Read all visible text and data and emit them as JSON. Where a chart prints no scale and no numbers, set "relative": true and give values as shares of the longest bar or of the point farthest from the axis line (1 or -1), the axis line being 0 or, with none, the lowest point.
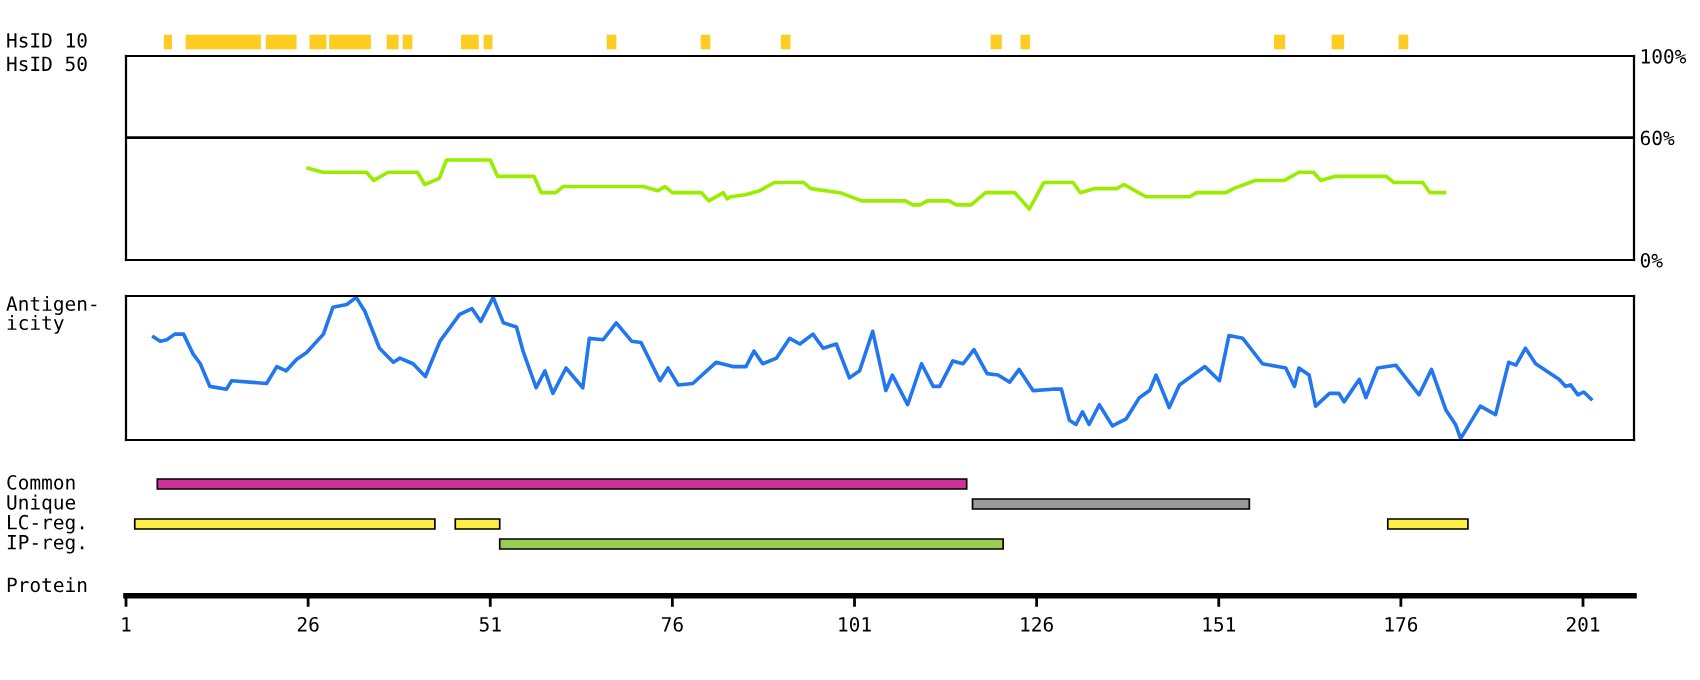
{
  "chart_data": [
    {
      "type": "bar",
      "orientation": "horizontal",
      "categories": [
        "HsID 10"
      ],
      "xlim": [
        1,
        208
      ],
      "tick_labels": "y",
      "series": [
        {
          "color": "#ffcc22",
          "base": [
            6.3
          ],
          "values": [
            0.9
          ]
        },
        {
          "color": "#ffcc22",
          "base": [
            9.3
          ],
          "values": [
            10.1
          ]
        },
        {
          "color": "#ffcc22",
          "base": [
            20.3
          ],
          "values": [
            4.0
          ]
        },
        {
          "color": "#ffcc22",
          "base": [
            26.3
          ],
          "values": [
            2.1
          ]
        },
        {
          "color": "#ffcc22",
          "base": [
            29.0
          ],
          "values": [
            5.5
          ]
        },
        {
          "color": "#ffcc22",
          "base": [
            36.9
          ],
          "values": [
            1.4
          ]
        },
        {
          "color": "#ffcc22",
          "base": [
            39.1
          ],
          "values": [
            1.1
          ]
        },
        {
          "color": "#ffcc22",
          "base": [
            47.1
          ],
          "values": [
            2.2
          ]
        },
        {
          "color": "#ffcc22",
          "base": [
            50.2
          ],
          "values": [
            1.0
          ]
        },
        {
          "color": "#ffcc22",
          "base": [
            67.1
          ],
          "values": [
            1.1
          ]
        },
        {
          "color": "#ffcc22",
          "base": [
            80.0
          ],
          "values": [
            1.1
          ]
        },
        {
          "color": "#ffcc22",
          "base": [
            91.0
          ],
          "values": [
            1.1
          ]
        },
        {
          "color": "#ffcc22",
          "base": [
            119.8
          ],
          "values": [
            1.3
          ]
        },
        {
          "color": "#ffcc22",
          "base": [
            123.9
          ],
          "values": [
            1.1
          ]
        },
        {
          "color": "#ffcc22",
          "base": [
            158.7
          ],
          "values": [
            1.3
          ]
        },
        {
          "color": "#ffcc22",
          "base": [
            166.6
          ],
          "values": [
            1.5
          ]
        },
        {
          "color": "#ffcc22",
          "base": [
            175.8
          ],
          "values": [
            1.1
          ]
        }
      ]
    },
    {
      "type": "line",
      "ylabel": "HsID 50",
      "xlim": [
        1,
        208
      ],
      "ylim": [
        0,
        100
      ],
      "tick_labels": "y",
      "yticks": [
        {
          "value": 0,
          "label": "0%"
        },
        {
          "value": 60,
          "label": "60%"
        },
        {
          "value": 100,
          "label": "100%"
        }
      ],
      "ref_lines": [
        {
          "axis": "y",
          "value": 60,
          "label": null,
          "color": "#000000"
        }
      ],
      "series": [
        {
          "color": "#99ee00",
          "x": [
            26,
            28,
            34,
            35,
            37,
            41,
            42,
            44,
            45,
            51,
            52,
            57,
            58,
            60,
            61,
            72,
            74,
            75,
            76,
            80,
            81,
            83,
            83.5,
            84,
            86,
            88,
            90,
            94,
            95,
            99,
            102,
            108,
            109,
            110,
            111,
            114,
            115,
            117,
            119,
            123,
            125,
            127,
            131,
            132,
            134,
            137,
            138,
            139,
            141,
            147,
            148,
            152,
            153,
            156,
            160,
            162,
            164,
            165,
            167,
            174,
            175,
            179,
            180,
            182
          ],
          "values": [
            45,
            43,
            43,
            39,
            43,
            43,
            37,
            40,
            49,
            49,
            41,
            41,
            33,
            33,
            36,
            36,
            34,
            36,
            33,
            33,
            29,
            33,
            30,
            31,
            32,
            34,
            38,
            38,
            35,
            33,
            29,
            29,
            27,
            27,
            29,
            29,
            27,
            27,
            33,
            33,
            25,
            38,
            38,
            33,
            35,
            35,
            37,
            35,
            31,
            31,
            33,
            33,
            35,
            39,
            39,
            43,
            43,
            39,
            41,
            41,
            38,
            38,
            33,
            33
          ]
        }
      ]
    },
    {
      "type": "line",
      "ylabel": "Antigen-\nicity",
      "relative": true,
      "xlim": [
        1,
        208
      ],
      "tick_labels": false,
      "series": [
        {
          "color": "#2277ee",
          "x": [
            4.8,
            5.7,
            6.6,
            7.7,
            8.9,
            10.2,
            11.2,
            12.5,
            14.8,
            15.5,
            20.3,
            21.7,
            23.0,
            24.4,
            25.8,
            28.1,
            29.4,
            31.3,
            32.6,
            33.8,
            35.8,
            37.7,
            38.6,
            40.4,
            42.1,
            44.1,
            46.8,
            48.5,
            49.7,
            51.4,
            52.8,
            54.6,
            55.5,
            57.3,
            58.5,
            59.6,
            61.4,
            63.7,
            64.6,
            66.5,
            68.3,
            70.4,
            71.7,
            74.3,
            75.4,
            76.8,
            78.8,
            82.0,
            84.3,
            86.1,
            87.2,
            88.4,
            90.3,
            92.1,
            93.5,
            95.3,
            96.7,
            98.5,
            100.3,
            101.7,
            103.5,
            105.3,
            106.2,
            108.3,
            110.2,
            111.8,
            112.7,
            114.5,
            115.9,
            117.4,
            119.2,
            120.7,
            122.3,
            123.6,
            125.5,
            128.2,
            129.4,
            130.5,
            131.4,
            132.3,
            133.2,
            134.6,
            136.4,
            138.3,
            140.1,
            141.5,
            142.4,
            144.2,
            145.6,
            149.1,
            151.1,
            152.4,
            154.3,
            157.0,
            160.2,
            161.4,
            162.0,
            163.4,
            164.3,
            166.2,
            167.5,
            168.2,
            170.3,
            171.2,
            172.8,
            175.3,
            178.5,
            180.2,
            182.2,
            183.5,
            184.2,
            186.9,
            189.0,
            190.8,
            191.8,
            193.1,
            194.5,
            197.7,
            198.6,
            199.3,
            200.3,
            201.1,
            202.1
          ],
          "values": [
            0.72,
            0.69,
            0.7,
            0.74,
            0.74,
            0.6,
            0.53,
            0.37,
            0.35,
            0.41,
            0.39,
            0.51,
            0.48,
            0.56,
            0.61,
            0.74,
            0.93,
            0.95,
            1.0,
            0.9,
            0.64,
            0.54,
            0.57,
            0.53,
            0.44,
            0.69,
            0.88,
            0.92,
            0.83,
            1.0,
            0.82,
            0.79,
            0.62,
            0.36,
            0.48,
            0.32,
            0.5,
            0.36,
            0.71,
            0.7,
            0.82,
            0.69,
            0.68,
            0.41,
            0.5,
            0.38,
            0.39,
            0.54,
            0.51,
            0.51,
            0.62,
            0.53,
            0.57,
            0.71,
            0.67,
            0.74,
            0.64,
            0.67,
            0.43,
            0.48,
            0.76,
            0.34,
            0.45,
            0.24,
            0.53,
            0.37,
            0.37,
            0.55,
            0.53,
            0.63,
            0.46,
            0.45,
            0.4,
            0.49,
            0.34,
            0.35,
            0.35,
            0.13,
            0.1,
            0.19,
            0.1,
            0.24,
            0.09,
            0.14,
            0.29,
            0.34,
            0.45,
            0.22,
            0.38,
            0.51,
            0.41,
            0.73,
            0.71,
            0.53,
            0.5,
            0.37,
            0.5,
            0.45,
            0.23,
            0.32,
            0.32,
            0.26,
            0.42,
            0.29,
            0.5,
            0.52,
            0.31,
            0.49,
            0.2,
            0.1,
            0.0,
            0.23,
            0.17,
            0.54,
            0.52,
            0.64,
            0.53,
            0.42,
            0.37,
            0.38,
            0.31,
            0.33,
            0.28
          ]
        }
      ]
    },
    {
      "type": "bar",
      "orientation": "horizontal",
      "categories": [
        "Common",
        "Unique",
        "LC-reg.",
        "IP-reg."
      ],
      "xlabel": "Protein",
      "xlim": [
        1,
        208
      ],
      "xticks": [
        1,
        26,
        51,
        76,
        101,
        126,
        151,
        176,
        201
      ],
      "series": [
        {
          "colors": [
            "#cc3399",
            "#999999",
            "#ffee44",
            "#99cc55"
          ],
          "base": [
            5.3,
            117.2,
            2.2,
            52.3
          ],
          "values": [
            111.1,
            38.0,
            41.2,
            69.1
          ]
        },
        {
          "colors": [
            null,
            null,
            "#ffee44",
            null
          ],
          "base": [
            null,
            null,
            46.2,
            null
          ],
          "values": [
            null,
            null,
            6.1,
            null
          ]
        },
        {
          "colors": [
            null,
            null,
            "#ffee44",
            null
          ],
          "base": [
            null,
            null,
            174.2,
            null
          ],
          "values": [
            null,
            null,
            11.0,
            null
          ]
        }
      ]
    }
  ]
}
